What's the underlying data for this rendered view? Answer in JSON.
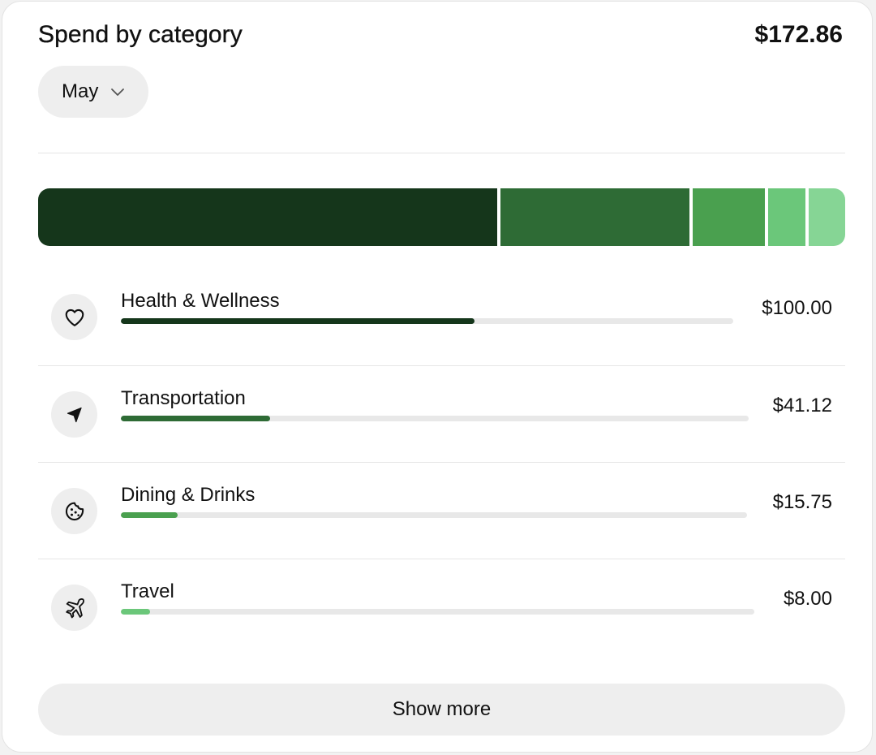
{
  "header": {
    "title": "Spend by category",
    "total": "$172.86"
  },
  "month_select": {
    "value": "May",
    "icon": "chevron-down-icon"
  },
  "colors": {
    "health": "#15361b",
    "transportation": "#2e6b35",
    "dining": "#4aa04f",
    "travel": "#6bc77a",
    "other": "#86d595",
    "track": "#e8e8e8",
    "chip_bg": "#eeeeee"
  },
  "stacked_bar": {
    "segments": [
      {
        "category": "Health & Wellness",
        "value": 100.0,
        "color": "#15361b"
      },
      {
        "category": "Transportation",
        "value": 41.12,
        "color": "#2e6b35"
      },
      {
        "category": "Dining & Drinks",
        "value": 15.75,
        "color": "#4aa04f"
      },
      {
        "category": "Travel",
        "value": 8.0,
        "color": "#6bc77a"
      },
      {
        "category": "other",
        "value": 7.99,
        "color": "#86d595"
      }
    ]
  },
  "categories": [
    {
      "name": "Health & Wellness",
      "amount": "$100.00",
      "share": 0.578,
      "icon": "heart-icon",
      "color": "#15361b"
    },
    {
      "name": "Transportation",
      "amount": "$41.12",
      "share": 0.238,
      "icon": "location-arrow-icon",
      "color": "#2e6b35"
    },
    {
      "name": "Dining & Drinks",
      "amount": "$15.75",
      "share": 0.091,
      "icon": "cookie-icon",
      "color": "#4aa04f"
    },
    {
      "name": "Travel",
      "amount": "$8.00",
      "share": 0.046,
      "icon": "airplane-icon",
      "color": "#6bc77a"
    }
  ],
  "show_more_label": "Show more"
}
